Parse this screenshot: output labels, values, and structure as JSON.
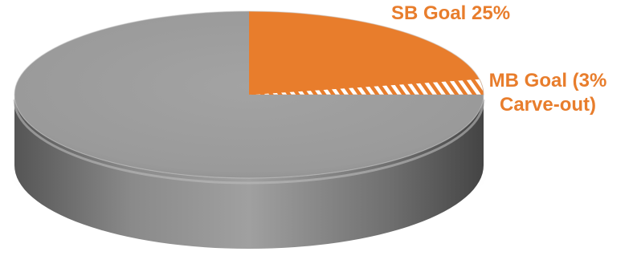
{
  "chart_data": {
    "type": "pie",
    "style": "3d-tilted",
    "title": "",
    "slices": [
      {
        "label": "SB Goal 25%",
        "label_lines": [
          "SB Goal 25%"
        ],
        "value": 22,
        "color": "#e87d2c",
        "pattern": "solid"
      },
      {
        "label": "MB Goal (3% Carve-out)",
        "label_lines": [
          "MB Goal (3%",
          "Carve-out)"
        ],
        "value": 3,
        "color": "#e87d2c",
        "pattern": "diagonal-hatch"
      },
      {
        "label": "",
        "value": 75,
        "color": "#9b9b9b",
        "pattern": "solid"
      }
    ],
    "start_angle": "12 o'clock",
    "direction": "clockwise",
    "legend": "none"
  }
}
